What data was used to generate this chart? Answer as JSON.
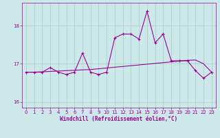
{
  "title": "",
  "xlabel": "Windchill (Refroidissement éolien,°C)",
  "ylabel": "",
  "background_color": "#cce8e8",
  "grid_color": "#aacccc",
  "line_color": "#990099",
  "xlim": [
    -0.5,
    23.5
  ],
  "ylim": [
    15.85,
    18.6
  ],
  "yticks": [
    16,
    17,
    18
  ],
  "xticks": [
    0,
    1,
    2,
    3,
    4,
    5,
    6,
    7,
    8,
    9,
    10,
    11,
    12,
    13,
    14,
    15,
    16,
    17,
    18,
    19,
    20,
    21,
    22,
    23
  ],
  "windchill_y": [
    16.78,
    16.78,
    16.78,
    16.9,
    16.78,
    16.72,
    16.78,
    17.28,
    16.78,
    16.72,
    16.78,
    17.68,
    17.78,
    17.78,
    17.65,
    18.38,
    17.55,
    17.78,
    17.08,
    17.08,
    17.08,
    16.82,
    16.62,
    16.78
  ],
  "trend_y": [
    16.78,
    16.78,
    16.79,
    16.8,
    16.81,
    16.82,
    16.83,
    16.84,
    16.85,
    16.87,
    16.89,
    16.91,
    16.93,
    16.95,
    16.97,
    16.99,
    17.01,
    17.03,
    17.05,
    17.07,
    17.09,
    17.1,
    17.0,
    16.78
  ],
  "marker": "+",
  "markersize": 3,
  "linewidth": 0.8,
  "tick_fontsize": 5,
  "xlabel_fontsize": 5.5
}
